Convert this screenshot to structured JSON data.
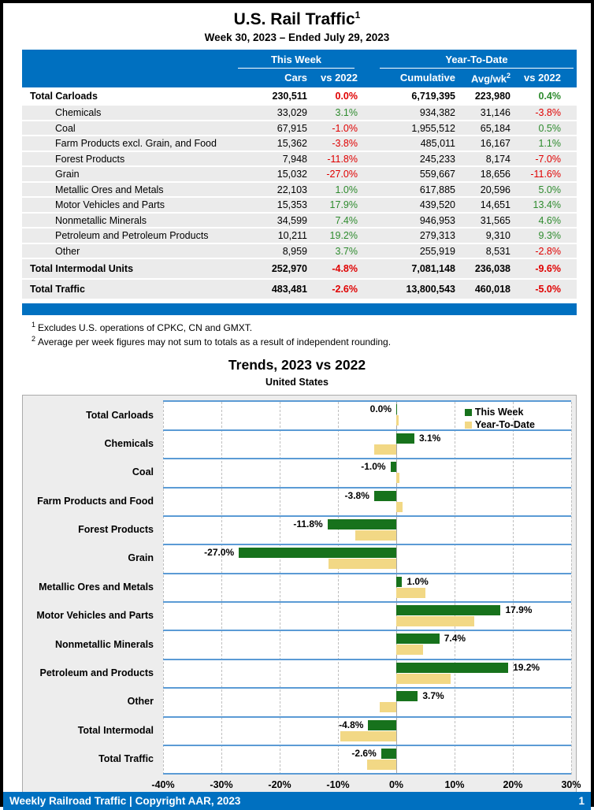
{
  "header": {
    "title": "U.S. Rail Traffic",
    "title_sup": "1",
    "subtitle": "Week 30, 2023 – Ended July 29, 2023"
  },
  "table": {
    "group_this_week": "This Week",
    "group_ytd": "Year-To-Date",
    "columns": {
      "cars": "Cars",
      "wk_vs": "vs 2022",
      "cumulative": "Cumulative",
      "avg": "Avg/wk",
      "avg_sup": "2",
      "ytd_vs": "vs 2022"
    },
    "rows": [
      {
        "label": "Total Carloads",
        "total": true,
        "first": true,
        "cars": "230,511",
        "wk": "0.0%",
        "wk_color": "neg",
        "cum": "6,719,395",
        "avg": "223,980",
        "ytd": "0.4%",
        "ytd_color": "pos"
      },
      {
        "label": "Chemicals",
        "cars": "33,029",
        "wk": "3.1%",
        "wk_color": "pos",
        "cum": "934,382",
        "avg": "31,146",
        "ytd": "-3.8%",
        "ytd_color": "neg"
      },
      {
        "label": "Coal",
        "cars": "67,915",
        "wk": "-1.0%",
        "wk_color": "neg",
        "cum": "1,955,512",
        "avg": "65,184",
        "ytd": "0.5%",
        "ytd_color": "pos"
      },
      {
        "label": "Farm Products excl. Grain, and Food",
        "cars": "15,362",
        "wk": "-3.8%",
        "wk_color": "neg",
        "cum": "485,011",
        "avg": "16,167",
        "ytd": "1.1%",
        "ytd_color": "pos"
      },
      {
        "label": "Forest Products",
        "cars": "7,948",
        "wk": "-11.8%",
        "wk_color": "neg",
        "cum": "245,233",
        "avg": "8,174",
        "ytd": "-7.0%",
        "ytd_color": "neg"
      },
      {
        "label": "Grain",
        "cars": "15,032",
        "wk": "-27.0%",
        "wk_color": "neg",
        "cum": "559,667",
        "avg": "18,656",
        "ytd": "-11.6%",
        "ytd_color": "neg"
      },
      {
        "label": "Metallic Ores and Metals",
        "cars": "22,103",
        "wk": "1.0%",
        "wk_color": "pos",
        "cum": "617,885",
        "avg": "20,596",
        "ytd": "5.0%",
        "ytd_color": "pos"
      },
      {
        "label": "Motor Vehicles and Parts",
        "cars": "15,353",
        "wk": "17.9%",
        "wk_color": "pos",
        "cum": "439,520",
        "avg": "14,651",
        "ytd": "13.4%",
        "ytd_color": "pos"
      },
      {
        "label": "Nonmetallic Minerals",
        "cars": "34,599",
        "wk": "7.4%",
        "wk_color": "pos",
        "cum": "946,953",
        "avg": "31,565",
        "ytd": "4.6%",
        "ytd_color": "pos"
      },
      {
        "label": "Petroleum and Petroleum Products",
        "cars": "10,211",
        "wk": "19.2%",
        "wk_color": "pos",
        "cum": "279,313",
        "avg": "9,310",
        "ytd": "9.3%",
        "ytd_color": "pos"
      },
      {
        "label": "Other",
        "cars": "8,959",
        "wk": "3.7%",
        "wk_color": "pos",
        "cum": "255,919",
        "avg": "8,531",
        "ytd": "-2.8%",
        "ytd_color": "neg"
      },
      {
        "label": "Total Intermodal Units",
        "total": true,
        "cars": "252,970",
        "wk": "-4.8%",
        "wk_color": "neg",
        "cum": "7,081,148",
        "avg": "236,038",
        "ytd": "-9.6%",
        "ytd_color": "neg"
      },
      {
        "label": "Total Traffic",
        "total": true,
        "cars": "483,481",
        "wk": "-2.6%",
        "wk_color": "neg",
        "cum": "13,800,543",
        "avg": "460,018",
        "ytd": "-5.0%",
        "ytd_color": "neg"
      }
    ]
  },
  "footnotes": [
    {
      "sup": "1",
      "text": "Excludes U.S. operations of CPKC, CN and GMXT."
    },
    {
      "sup": "2",
      "text": "Average per week figures may not sum to totals as a result of independent rounding."
    }
  ],
  "chart_data": {
    "type": "bar",
    "orientation": "horizontal",
    "title": "Trends, 2023 vs 2022",
    "subtitle": "United States",
    "categories": [
      "Total Carloads",
      "Chemicals",
      "Coal",
      "Farm Products and Food",
      "Forest Products",
      "Grain",
      "Metallic Ores and Metals",
      "Motor Vehicles and Parts",
      "Nonmetallic Minerals",
      "Petroleum and Products",
      "Other",
      "Total Intermodal",
      "Total Traffic"
    ],
    "series": [
      {
        "name": "This Week",
        "color": "#17721C",
        "values": [
          0.0,
          3.1,
          -1.0,
          -3.8,
          -11.8,
          -27.0,
          1.0,
          17.9,
          7.4,
          19.2,
          3.7,
          -4.8,
          -2.6
        ]
      },
      {
        "name": "Year-To-Date",
        "color": "#F2D885",
        "values": [
          0.4,
          -3.8,
          0.5,
          1.1,
          -7.0,
          -11.6,
          5.0,
          13.4,
          4.6,
          9.3,
          -2.8,
          -9.6,
          -5.0
        ]
      }
    ],
    "bar_labels": [
      "0.0%",
      "3.1%",
      "-1.0%",
      "-3.8%",
      "-11.8%",
      "-27.0%",
      "1.0%",
      "17.9%",
      "7.4%",
      "19.2%",
      "3.7%",
      "-4.8%",
      "-2.6%"
    ],
    "xlim": [
      -40,
      30
    ],
    "ticks": [
      {
        "v": -40,
        "label": "-40%"
      },
      {
        "v": -30,
        "label": "-30%"
      },
      {
        "v": -20,
        "label": "-20%"
      },
      {
        "v": -10,
        "label": "-10%"
      },
      {
        "v": 0,
        "label": "0%"
      },
      {
        "v": 10,
        "label": "10%"
      },
      {
        "v": 20,
        "label": "20%"
      },
      {
        "v": 30,
        "label": "30%"
      }
    ],
    "grid": "dashed-vertical-per-tick",
    "legend_position": "top-right",
    "separator_color": "#5B9BD5"
  },
  "footer": {
    "text": "Weekly Railroad Traffic | Copyright AAR, 2023",
    "page": "1"
  }
}
